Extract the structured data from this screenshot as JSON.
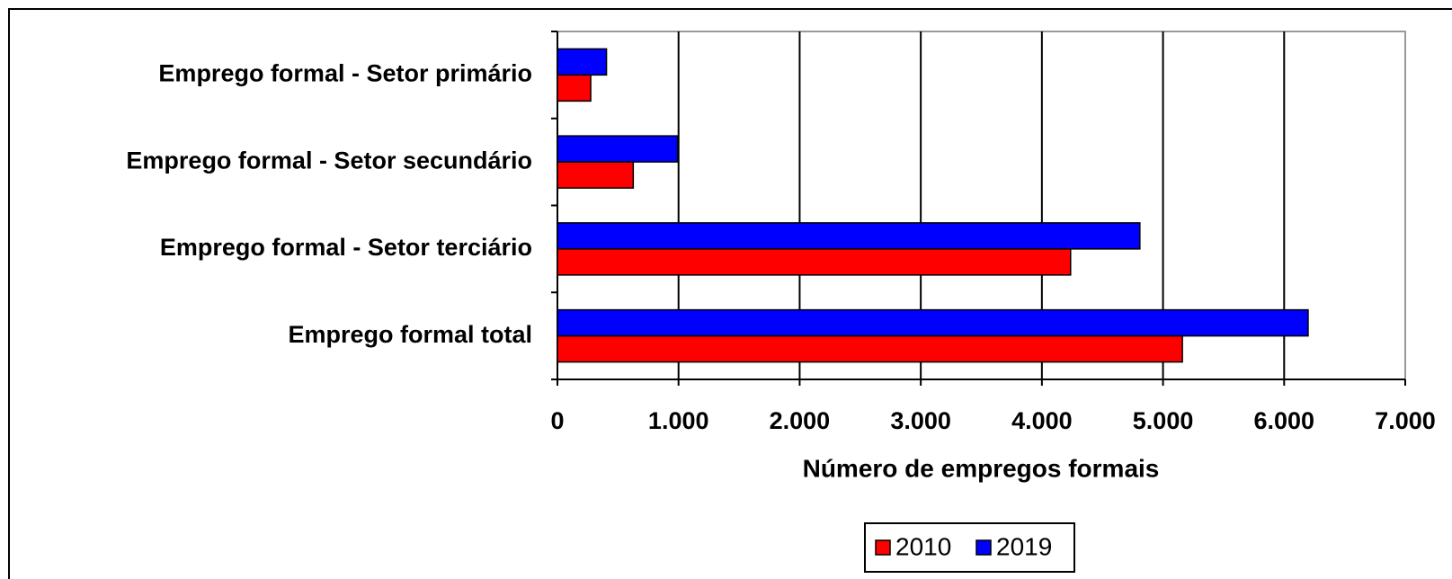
{
  "chart_data": {
    "type": "hbar",
    "categories": [
      "Emprego formal - Setor primário",
      "Emprego formal - Setor secundário",
      "Emprego formal - Setor terciário",
      "Emprego formal total"
    ],
    "series": [
      {
        "name": "2010",
        "color": "#ff0000",
        "values": [
          275,
          626,
          4237,
          5160
        ]
      },
      {
        "name": "2019",
        "color": "#0000ff",
        "values": [
          405,
          992,
          4809,
          6198
        ]
      }
    ],
    "xlabel": "Número de empregos formais",
    "xlim": [
      0,
      7000
    ],
    "xticks": [
      0,
      {
        "value": 1000,
        "label": "1.000"
      },
      {
        "value": 2000,
        "label": "2.000"
      },
      {
        "value": 3000,
        "label": "3.000"
      },
      {
        "value": 4000,
        "label": "4.000"
      },
      {
        "value": 5000,
        "label": "5.000"
      },
      {
        "value": 6000,
        "label": "6.000"
      },
      {
        "value": 7000,
        "label": "7.000"
      }
    ],
    "grid": true,
    "legend": "bottom"
  }
}
